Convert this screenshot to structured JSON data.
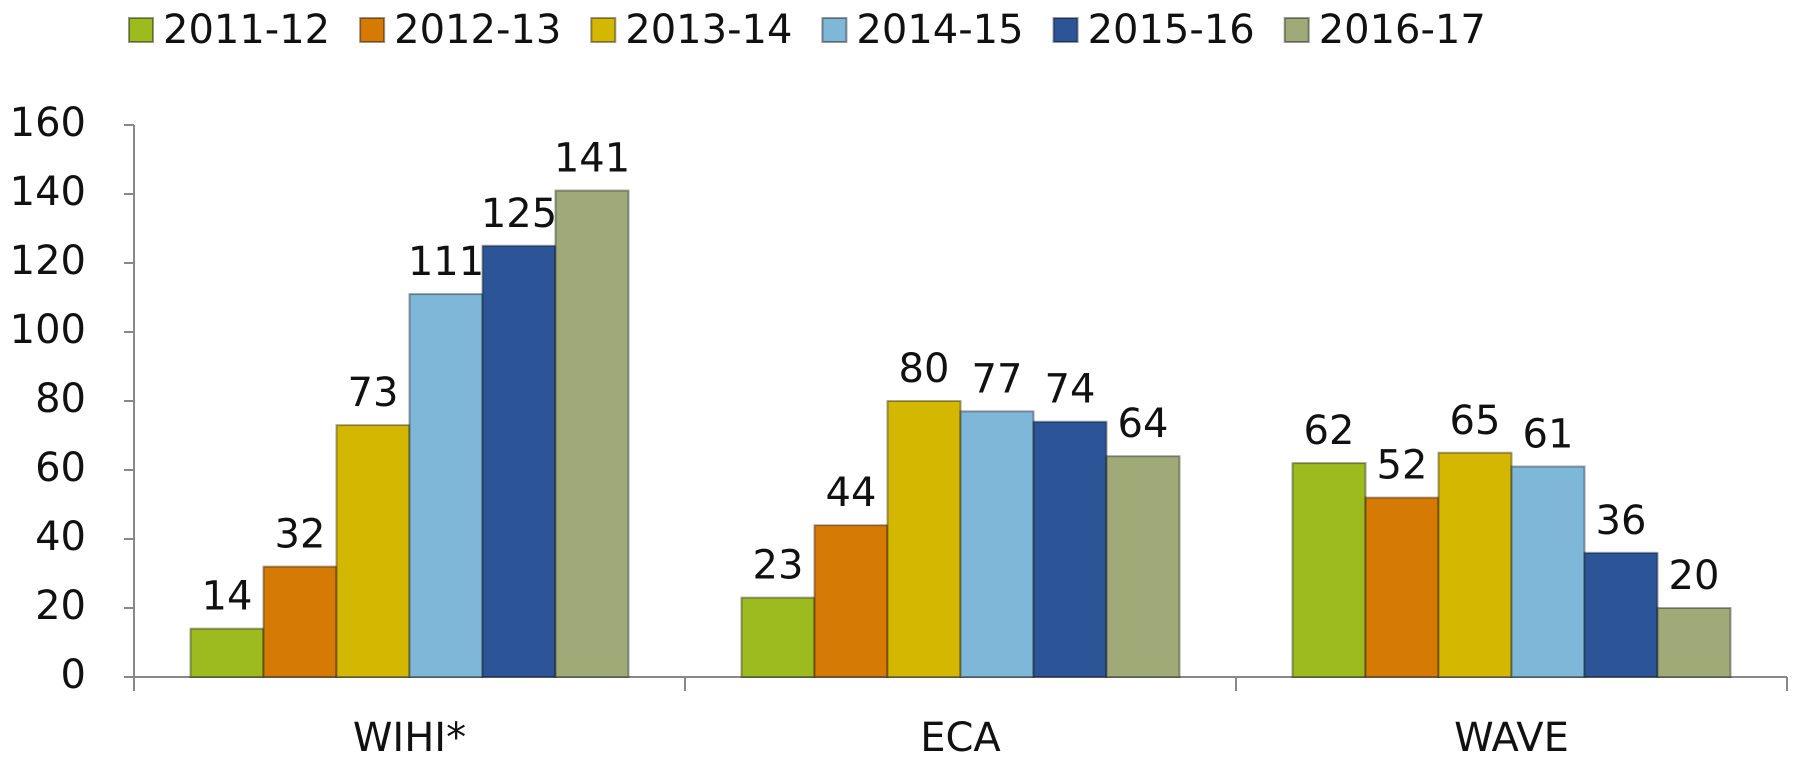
{
  "chart_data": {
    "type": "bar",
    "categories": [
      "WIHI*",
      "ECA",
      "WAVE"
    ],
    "series": [
      {
        "name": "2011-12",
        "color": "#9dba1f",
        "values": [
          14,
          23,
          62
        ]
      },
      {
        "name": "2012-13",
        "color": "#d67a06",
        "values": [
          32,
          44,
          52
        ]
      },
      {
        "name": "2013-14",
        "color": "#d4b700",
        "values": [
          73,
          80,
          65
        ]
      },
      {
        "name": "2014-15",
        "color": "#7fb7d9",
        "values": [
          111,
          77,
          61
        ]
      },
      {
        "name": "2015-16",
        "color": "#2b5597",
        "values": [
          125,
          74,
          36
        ]
      },
      {
        "name": "2016-17",
        "color": "#a0aa78",
        "values": [
          141,
          64,
          20
        ]
      }
    ],
    "ylim": [
      0,
      160
    ],
    "yticks": [
      0,
      20,
      40,
      60,
      80,
      100,
      120,
      140,
      160
    ],
    "legend": "top",
    "data_labels": true
  }
}
